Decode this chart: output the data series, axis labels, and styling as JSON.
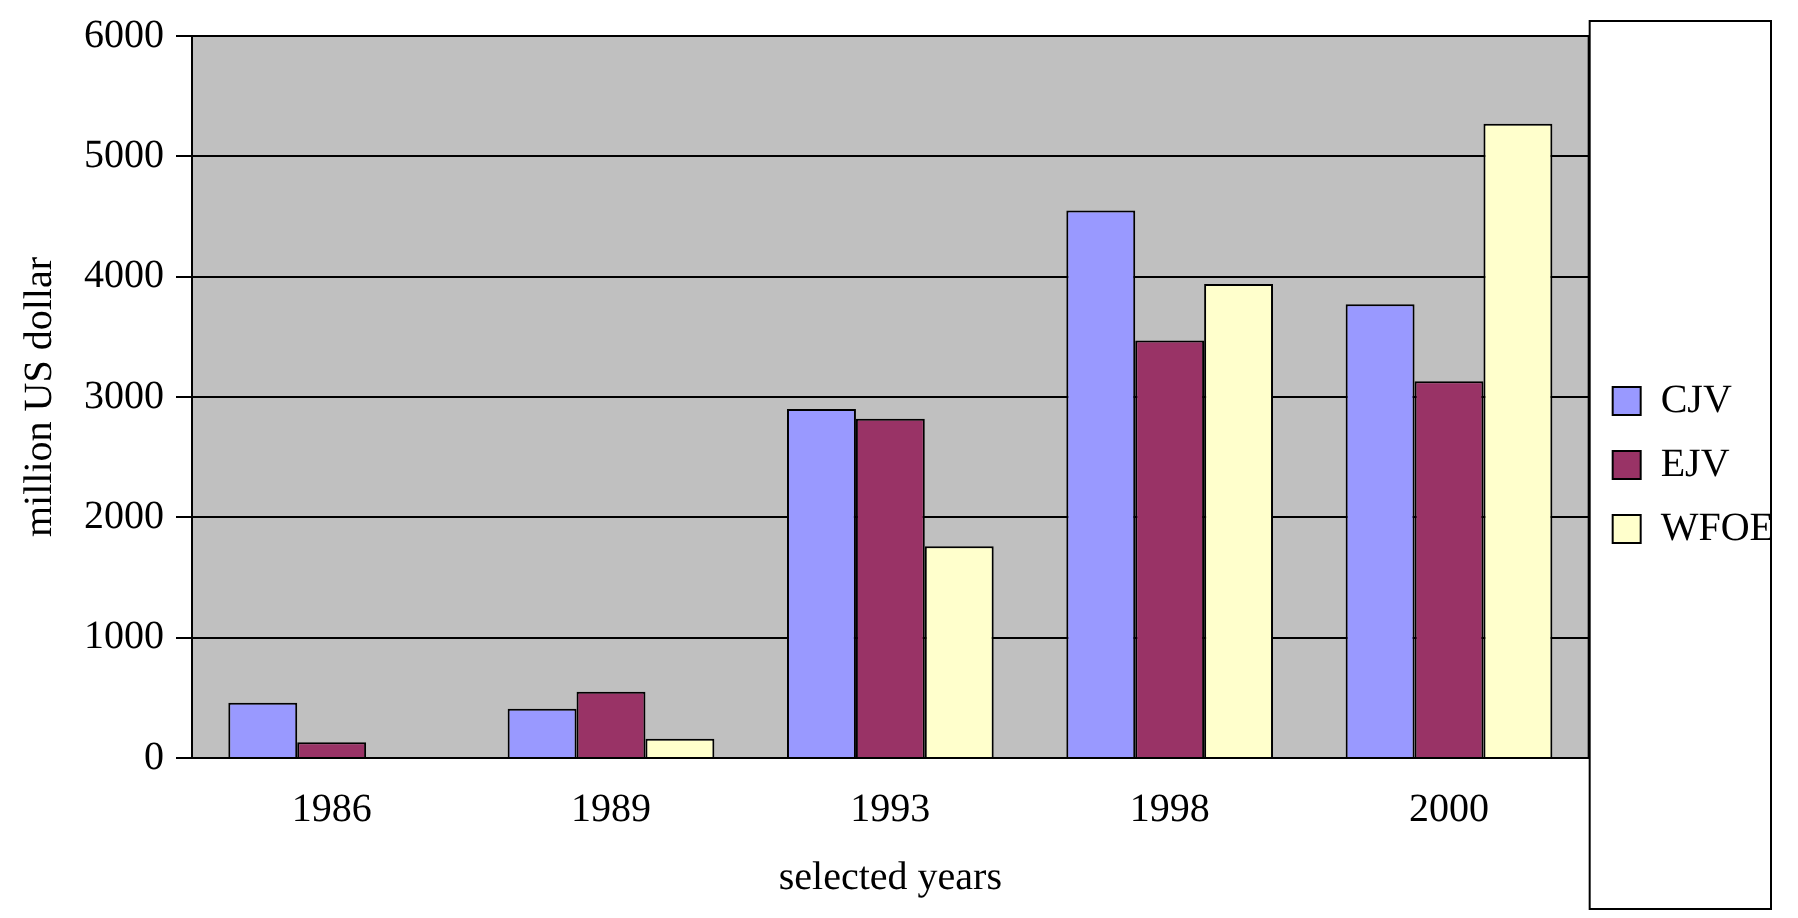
{
  "chart_data": {
    "type": "bar",
    "xlabel": "selected years",
    "ylabel": "million US dollar",
    "categories": [
      "1986",
      "1989",
      "1993",
      "1998",
      "2000"
    ],
    "series": [
      {
        "name": "CJV",
        "color": "#9999ff",
        "values": [
          460,
          410,
          2900,
          4550,
          3770
        ]
      },
      {
        "name": "EJV",
        "color": "#993366",
        "values": [
          130,
          550,
          2820,
          3470,
          3130
        ]
      },
      {
        "name": "WFOE",
        "color": "#ffffcc",
        "values": [
          0,
          160,
          1760,
          3940,
          5270
        ]
      }
    ],
    "ylim": [
      0,
      6000
    ],
    "yticks": [
      0,
      1000,
      2000,
      3000,
      4000,
      5000,
      6000
    ],
    "grid": "y",
    "legend": "right"
  }
}
